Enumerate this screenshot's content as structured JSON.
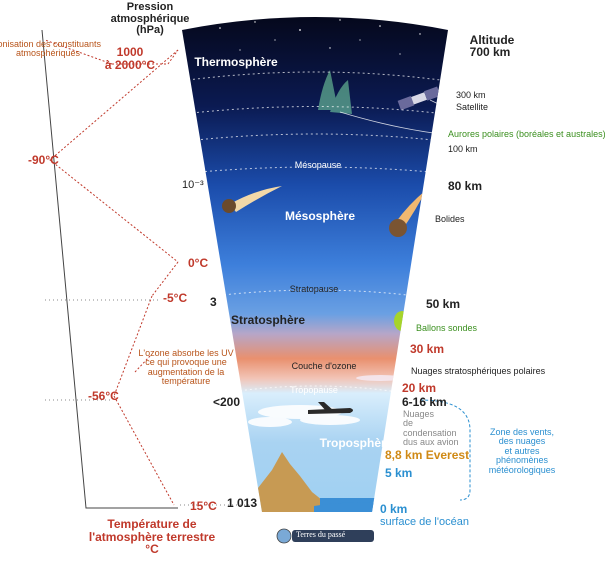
{
  "pressure_header": [
    "Pression",
    "atmosphérique",
    "(hPa)"
  ],
  "altitude_header": "Altitude",
  "ionisation_note": [
    "Ionisation des constituants",
    "atmosphériques"
  ],
  "temp_top": [
    "1000",
    "à 2000°C"
  ],
  "temp_labels": {
    "t1": "-90°C",
    "t2": "0°C",
    "t3": "-5°C",
    "t4": "-56°C",
    "t5": "15°C"
  },
  "pressure_values": {
    "p1": "10⁻³",
    "p2": "3",
    "p3": "<200",
    "p4": "1 013"
  },
  "altitudes": {
    "a700": "700 km",
    "a300": "300 km",
    "a100": "100 km",
    "a80": "80 km",
    "a50": "50 km",
    "a30": "30 km",
    "a20": "20 km",
    "a616": "6-16 km",
    "a88": "8,8 km Everest",
    "a5": "5 km",
    "a0": "0 km"
  },
  "layers": {
    "thermo": "Thermosphère",
    "meso": "Mésosphère",
    "strato": "Stratosphère",
    "tropo": "Troposphère",
    "ozone": "Couche d'ozone"
  },
  "boundaries": {
    "mesopause": "Mésopause",
    "stratopause": "Stratopause",
    "tropopause": "Tropopause"
  },
  "phenomena": {
    "satellite": "Satellite",
    "aurora": "Aurores polaires (boréales et australes)",
    "bolides": "Bolides",
    "balloons": "Ballons sondes",
    "polar_clouds": "Nuages stratosphériques polaires",
    "contrails": [
      "Nuages",
      "de",
      "condensation",
      "dus aux avion"
    ],
    "wind_zone": [
      "Zone des vents,",
      "des nuages",
      "et autres",
      "phénomènes",
      "météorologiques"
    ]
  },
  "ozone_note": [
    "L'ozone absorbe les UV",
    "ce qui provoque une",
    "augmentation de la",
    "température"
  ],
  "ocean_surface": "surface de l'océan",
  "temp_title": [
    "Température de",
    "l'atmosphère terrestre",
    "°C"
  ],
  "logo_text": "Terres du passé",
  "colors": {
    "red": "#c0392b",
    "blue": "#2a8fd0",
    "green": "#3a8f1e",
    "sky_top": "#0a0f2a",
    "sky_mid": "#2d6fd3",
    "ozone": "#e98e6a"
  }
}
